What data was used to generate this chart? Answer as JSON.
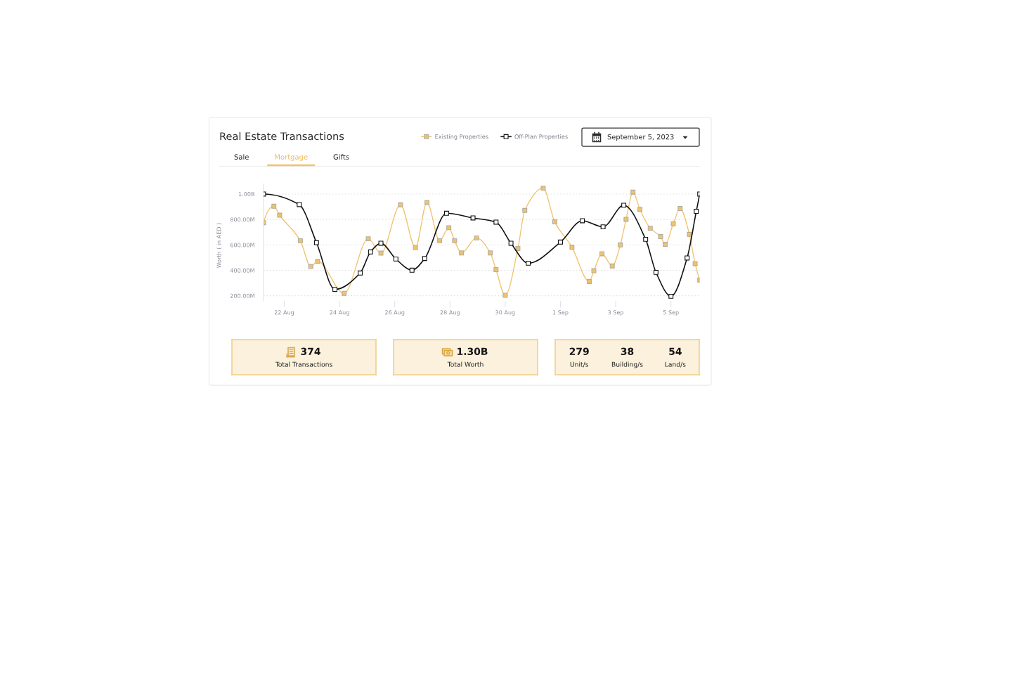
{
  "chart_data": [
    {
      "type": "line",
      "title": "Real Estate Transactions",
      "subtitle": "September 5, 2023",
      "ylabel": "Worth ( in AED )",
      "annotations": [
        "Sale",
        "Mortgage",
        "Gifts"
      ],
      "xlim": [
        "2023-08-21T06:00",
        "2023-09-06T01:00"
      ],
      "xticks": [
        {
          "value": "2023-08-22",
          "label": "22 Aug"
        },
        {
          "value": "2023-08-24",
          "label": "24 Aug"
        },
        {
          "value": "2023-08-26",
          "label": "26 Aug"
        },
        {
          "value": "2023-08-28",
          "label": "28 Aug"
        },
        {
          "value": "2023-08-30",
          "label": "30 Aug"
        },
        {
          "value": "2023-09-01",
          "label": "1 Sep"
        },
        {
          "value": "2023-09-03",
          "label": "3 Sep"
        },
        {
          "value": "2023-09-05",
          "label": "5 Sep"
        }
      ],
      "ylim": [
        160000000,
        1080000000
      ],
      "yticks": [
        {
          "value": 200000000,
          "label": "200.00M"
        },
        {
          "value": 400000000,
          "label": "400.00M"
        },
        {
          "value": 600000000,
          "label": "600.00M"
        },
        {
          "value": 800000000,
          "label": "800.00M"
        },
        {
          "value": 1000000000,
          "label": "1.00B"
        }
      ],
      "grid": "y",
      "legend": "top",
      "marker": "square",
      "line_style": "solid",
      "series": [
        {
          "name": "Existing Properties",
          "color": "#f0c36b",
          "x": [
            "2023-08-21T06:00",
            "2023-08-21T15:00",
            "2023-08-21T20:00",
            "2023-08-22T14:00",
            "2023-08-22T23:00",
            "2023-08-23T05:00",
            "2023-08-24T04:00",
            "2023-08-25T01:00",
            "2023-08-25T12:00",
            "2023-08-26T05:00",
            "2023-08-26T18:00",
            "2023-08-27T04:00",
            "2023-08-27T15:00",
            "2023-08-27T23:00",
            "2023-08-28T04:00",
            "2023-08-28T10:00",
            "2023-08-28T23:00",
            "2023-08-29T11:00",
            "2023-08-29T16:00",
            "2023-08-30T00:00",
            "2023-08-30T11:00",
            "2023-08-30T17:00",
            "2023-08-31T09:00",
            "2023-08-31T19:00",
            "2023-09-01T10:00",
            "2023-09-02T01:00",
            "2023-09-02T05:00",
            "2023-09-02T12:00",
            "2023-09-02T21:00",
            "2023-09-03T04:00",
            "2023-09-03T09:00",
            "2023-09-03T15:00",
            "2023-09-03T21:00",
            "2023-09-04T06:00",
            "2023-09-04T15:00",
            "2023-09-04T19:00",
            "2023-09-05T02:00",
            "2023-09-05T08:00",
            "2023-09-05T16:00",
            "2023-09-05T21:00",
            "2023-09-06T01:00"
          ],
          "values": [
            775000000,
            904000000,
            834000000,
            633000000,
            430000000,
            471000000,
            219000000,
            648000000,
            535000000,
            915000000,
            580000000,
            934000000,
            633000000,
            735000000,
            633000000,
            537000000,
            655000000,
            537000000,
            405000000,
            204000000,
            571000000,
            871000000,
            1046000000,
            781000000,
            582000000,
            312000000,
            397000000,
            530000000,
            434000000,
            600000000,
            801000000,
            1015000000,
            880000000,
            731000000,
            665000000,
            604000000,
            766000000,
            886000000,
            683000000,
            453000000,
            324000000
          ]
        },
        {
          "name": "Off-Plan Properties",
          "color": "#111111",
          "x": [
            "2023-08-21T06:00",
            "2023-08-22T13:00",
            "2023-08-23T04:00",
            "2023-08-23T20:00",
            "2023-08-24T18:00",
            "2023-08-25T03:00",
            "2023-08-25T12:00",
            "2023-08-26T01:00",
            "2023-08-26T15:00",
            "2023-08-27T02:00",
            "2023-08-27T21:00",
            "2023-08-28T20:00",
            "2023-08-29T16:00",
            "2023-08-30T05:00",
            "2023-08-30T20:00",
            "2023-09-01T00:00",
            "2023-09-01T19:00",
            "2023-09-02T13:00",
            "2023-09-03T07:00",
            "2023-09-04T02:00",
            "2023-09-04T11:00",
            "2023-09-05T00:00",
            "2023-09-05T14:00",
            "2023-09-05T22:00",
            "2023-09-06T01:00"
          ],
          "values": [
            1000000000,
            917000000,
            618000000,
            250000000,
            379000000,
            545000000,
            613000000,
            489000000,
            401000000,
            493000000,
            849000000,
            812000000,
            779000000,
            613000000,
            456000000,
            622000000,
            790000000,
            742000000,
            912000000,
            644000000,
            384000000,
            196000000,
            497000000,
            864000000,
            1000000000
          ]
        }
      ]
    },
    {
      "type": "other",
      "annotations": [
        "374",
        "Total Transactions"
      ]
    },
    {
      "type": "other",
      "annotations": [
        "1.30B",
        "Total Worth"
      ]
    },
    {
      "type": "other",
      "annotations": [
        "279",
        "Unit/s",
        "38",
        "Building/s",
        "54",
        "Land/s"
      ]
    }
  ]
}
